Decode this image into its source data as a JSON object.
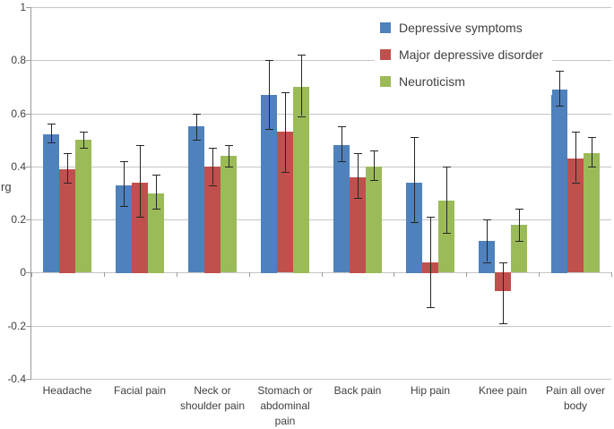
{
  "chart_data": {
    "type": "bar",
    "title": "",
    "xlabel": "",
    "ylabel": "rg",
    "ylim": [
      -0.4,
      1.0
    ],
    "yticks": [
      1,
      0.8,
      0.6,
      0.4,
      0.2,
      0,
      -0.2,
      -0.4
    ],
    "ytick_labels": [
      "1",
      "0.8",
      "0.6",
      "0.4",
      "0.2",
      "0",
      "-0.2",
      "-0.4"
    ],
    "grid": true,
    "legend_position": "inside-top-center",
    "categories": [
      "Headache",
      "Facial pain",
      "Neck or shoulder pain",
      "Stomach or abdominal pain",
      "Back pain",
      "Hip pain",
      "Knee pain",
      "Pain all over body"
    ],
    "category_label_lines": [
      [
        "Headache"
      ],
      [
        "Facial pain"
      ],
      [
        "Neck or",
        "shoulder pain"
      ],
      [
        "Stomach or",
        "abdominal",
        "pain"
      ],
      [
        "Back pain"
      ],
      [
        "Hip pain"
      ],
      [
        "Knee pain"
      ],
      [
        "Pain all over",
        "body"
      ]
    ],
    "series": [
      {
        "name": "Depressive symptoms",
        "color": "#4F81BD",
        "values": [
          0.52,
          0.33,
          0.55,
          0.67,
          0.48,
          0.34,
          0.12,
          0.69
        ],
        "error_low": [
          0.49,
          0.25,
          0.5,
          0.54,
          0.42,
          0.19,
          0.04,
          0.63
        ],
        "error_high": [
          0.56,
          0.42,
          0.6,
          0.8,
          0.55,
          0.51,
          0.2,
          0.76
        ]
      },
      {
        "name": "Major depressive disorder",
        "color": "#C0504D",
        "values": [
          0.39,
          0.34,
          0.4,
          0.53,
          0.36,
          0.04,
          -0.07,
          0.43
        ],
        "error_low": [
          0.34,
          0.21,
          0.33,
          0.38,
          0.28,
          -0.13,
          -0.19,
          0.34
        ],
        "error_high": [
          0.45,
          0.48,
          0.47,
          0.68,
          0.45,
          0.21,
          0.04,
          0.53
        ]
      },
      {
        "name": "Neuroticism",
        "color": "#9BBB59",
        "values": [
          0.5,
          0.3,
          0.44,
          0.7,
          0.4,
          0.27,
          0.18,
          0.45
        ],
        "error_low": [
          0.47,
          0.24,
          0.4,
          0.59,
          0.35,
          0.15,
          0.12,
          0.4
        ],
        "error_high": [
          0.53,
          0.37,
          0.48,
          0.82,
          0.46,
          0.4,
          0.24,
          0.51
        ]
      }
    ],
    "style": {
      "gridline_color": "#c6c6c6",
      "axis_color": "#9b9b9b",
      "error_bar_color": "#262626",
      "text_color": "#404040",
      "background": "#ffffff"
    }
  }
}
